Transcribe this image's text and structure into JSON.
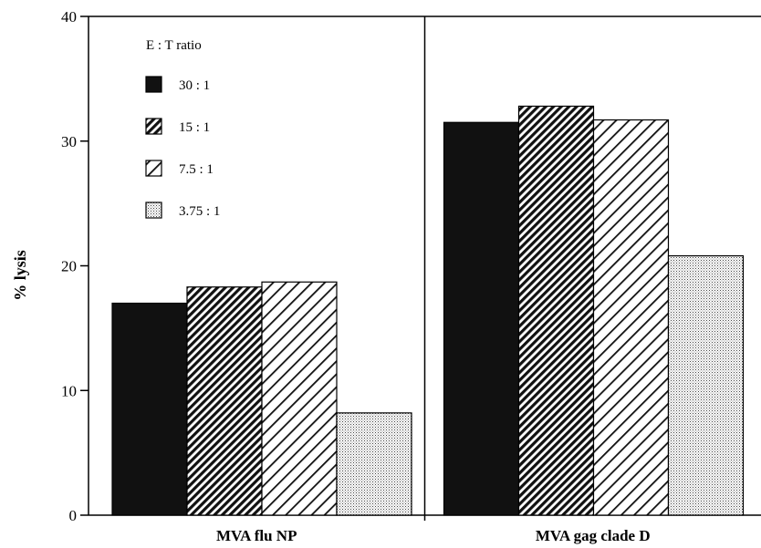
{
  "chart_data": {
    "type": "bar",
    "categories": [
      "MVA flu NP",
      "MVA gag clade D"
    ],
    "series": [
      {
        "name": "30 : 1",
        "values": [
          17.0,
          31.5
        ],
        "pattern": "solid"
      },
      {
        "name": "15 : 1",
        "values": [
          18.3,
          32.8
        ],
        "pattern": "dense-hatch"
      },
      {
        "name": "7.5 : 1",
        "values": [
          18.7,
          31.7
        ],
        "pattern": "sparse-hatch"
      },
      {
        "name": "3.75 : 1",
        "values": [
          8.2,
          20.8
        ],
        "pattern": "dots"
      }
    ],
    "ylabel": "% lysis",
    "ylim": [
      0,
      40
    ],
    "yticks": [
      "0",
      "10",
      "20",
      "30",
      "40"
    ],
    "legend_title": "E : T ratio",
    "legend_position": "top-left",
    "grid": false,
    "colors": {
      "bar_fill": "#111111",
      "stroke": "#000000",
      "background": "#ffffff"
    }
  }
}
